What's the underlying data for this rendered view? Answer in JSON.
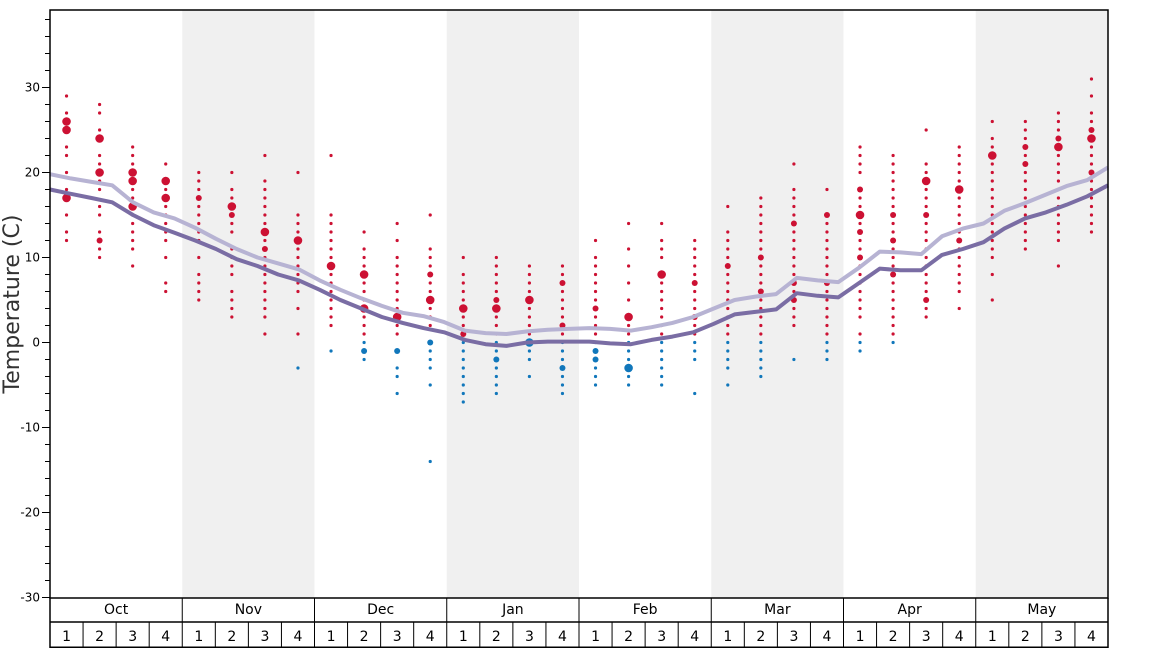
{
  "chart_data": {
    "type": "scatter",
    "title": "",
    "xlabel": "",
    "ylabel": "Temperature (C)",
    "ylim": [
      -30,
      38
    ],
    "yticks": [
      30,
      20,
      10,
      0,
      -10,
      -20,
      -30
    ],
    "yticks_minor_step": 2,
    "grid": false,
    "months": [
      "Oct",
      "Nov",
      "Dec",
      "Jan",
      "Feb",
      "Mar",
      "Apr",
      "May"
    ],
    "weeks": [
      "1",
      "2",
      "3",
      "4"
    ],
    "shaded_months": [
      "Nov",
      "Jan",
      "Mar",
      "May"
    ],
    "colors": {
      "warm_points": "#cc1133",
      "cold_points": "#1177bb",
      "upper_line": "#b7b3d3",
      "lower_line": "#7a6da4",
      "shade": "#f0f0f0"
    },
    "series": [
      {
        "role": "upper-line",
        "values": [
          19.8,
          19.3,
          18.9,
          18.5,
          16.5,
          15.3,
          14.6,
          13.5,
          12.2,
          11.0,
          10.0,
          9.3,
          8.6,
          7.3,
          6.2,
          5.2,
          4.3,
          3.5,
          3.1,
          2.4,
          1.4,
          1.1,
          1.0,
          1.3,
          1.5,
          1.6,
          1.7,
          1.6,
          1.4,
          1.8,
          2.3,
          3.0,
          4.0,
          5.0,
          5.4,
          5.7,
          7.6,
          7.3,
          7.1,
          8.8,
          10.7,
          10.6,
          10.4,
          12.5,
          13.4,
          14.0,
          15.5,
          16.4,
          17.4,
          18.4,
          19.1,
          20.6
        ]
      },
      {
        "role": "lower-line",
        "values": [
          18.0,
          17.5,
          17.0,
          16.5,
          15.0,
          13.8,
          12.9,
          12.0,
          11.0,
          9.8,
          9.0,
          8.0,
          7.3,
          6.2,
          5.0,
          4.0,
          3.0,
          2.3,
          1.7,
          1.2,
          0.3,
          -0.2,
          -0.4,
          0.0,
          0.1,
          0.1,
          0.1,
          -0.1,
          -0.2,
          0.3,
          0.7,
          1.2,
          2.2,
          3.3,
          3.6,
          3.9,
          5.8,
          5.5,
          5.3,
          7.0,
          8.7,
          8.5,
          8.5,
          10.3,
          11.0,
          11.8,
          13.4,
          14.6,
          15.3,
          16.2,
          17.2,
          18.5
        ]
      }
    ],
    "points": [
      {
        "m": "Oct",
        "w": 1,
        "ys": [
          29,
          27,
          26,
          25,
          23,
          22,
          20,
          18,
          17,
          15,
          13,
          12
        ],
        "big": [
          26,
          25,
          17
        ],
        "mid": []
      },
      {
        "m": "Oct",
        "w": 2,
        "ys": [
          28,
          27,
          25,
          24,
          22,
          21,
          20,
          19,
          18,
          16,
          15,
          13,
          12,
          11,
          10
        ],
        "big": [
          24,
          20
        ],
        "mid": [
          12
        ]
      },
      {
        "m": "Oct",
        "w": 3,
        "ys": [
          23,
          22,
          21,
          20,
          19,
          18,
          17,
          16,
          15,
          14,
          13,
          12,
          11,
          9
        ],
        "big": [
          20,
          19,
          16
        ],
        "mid": []
      },
      {
        "m": "Oct",
        "w": 4,
        "ys": [
          21,
          19,
          18,
          17,
          16,
          15,
          14,
          13,
          12,
          10,
          7,
          6
        ],
        "big": [
          19,
          17
        ],
        "mid": []
      },
      {
        "m": "Nov",
        "w": 1,
        "ys": [
          20,
          19,
          18,
          17,
          16,
          15,
          14,
          13,
          12,
          10,
          8,
          7,
          6,
          5
        ],
        "big": [],
        "mid": [
          17
        ]
      },
      {
        "m": "Nov",
        "w": 2,
        "ys": [
          20,
          18,
          17,
          16,
          15,
          14,
          13,
          11,
          10,
          9,
          8,
          6,
          5,
          4,
          3
        ],
        "big": [
          16
        ],
        "mid": [
          15
        ]
      },
      {
        "m": "Nov",
        "w": 3,
        "ys": [
          22,
          19,
          18,
          17,
          16,
          15,
          14,
          13,
          12,
          11,
          10,
          9,
          8,
          7,
          6,
          5,
          4,
          3,
          1
        ],
        "big": [
          13
        ],
        "mid": [
          11
        ]
      },
      {
        "m": "Nov",
        "w": 4,
        "ys": [
          20,
          15,
          14,
          13,
          12,
          11,
          10,
          9,
          8,
          7,
          6,
          4,
          1,
          -3
        ],
        "big": [
          12
        ],
        "mid": []
      },
      {
        "m": "Dec",
        "w": 1,
        "ys": [
          22,
          15,
          14,
          13,
          12,
          11,
          10,
          9,
          8,
          7,
          6,
          5,
          4,
          3,
          2,
          -1
        ],
        "big": [
          9
        ],
        "mid": []
      },
      {
        "m": "Dec",
        "w": 2,
        "ys": [
          13,
          11,
          10,
          9,
          8,
          7,
          6,
          5,
          4,
          3,
          2,
          1,
          0,
          -1,
          -2
        ],
        "big": [
          8,
          4
        ],
        "mid": [
          -1
        ]
      },
      {
        "m": "Dec",
        "w": 3,
        "ys": [
          14,
          12,
          10,
          9,
          8,
          7,
          6,
          5,
          4,
          3,
          2,
          1,
          -1,
          -3,
          -4,
          -6
        ],
        "big": [
          3
        ],
        "mid": [
          -1
        ]
      },
      {
        "m": "Dec",
        "w": 4,
        "ys": [
          15,
          11,
          10,
          9,
          8,
          7,
          6,
          5,
          4,
          3,
          2,
          0,
          -1,
          -2,
          -3,
          -5,
          -14
        ],
        "big": [
          5
        ],
        "mid": [
          8,
          0
        ]
      },
      {
        "m": "Jan",
        "w": 1,
        "ys": [
          10,
          8,
          7,
          6,
          5,
          4,
          3,
          2,
          1,
          0,
          -1,
          -2,
          -3,
          -4,
          -5,
          -6,
          -7
        ],
        "big": [
          4
        ],
        "mid": [
          1
        ]
      },
      {
        "m": "Jan",
        "w": 2,
        "ys": [
          10,
          9,
          8,
          7,
          6,
          5,
          4,
          3,
          2,
          1,
          0,
          -1,
          -2,
          -3,
          -4,
          -5,
          -6
        ],
        "big": [
          4
        ],
        "mid": [
          5,
          -2
        ]
      },
      {
        "m": "Jan",
        "w": 3,
        "ys": [
          9,
          8,
          7,
          6,
          5,
          4,
          3,
          2,
          1,
          0,
          -1,
          -2,
          -4
        ],
        "big": [
          5,
          0
        ],
        "mid": []
      },
      {
        "m": "Jan",
        "w": 4,
        "ys": [
          9,
          8,
          7,
          6,
          5,
          4,
          3,
          2,
          1,
          0,
          -1,
          -2,
          -3,
          -4,
          -5,
          -6
        ],
        "big": [],
        "mid": [
          7,
          2,
          -3
        ]
      },
      {
        "m": "Feb",
        "w": 1,
        "ys": [
          12,
          10,
          9,
          8,
          7,
          6,
          5,
          4,
          3,
          2,
          1,
          0,
          -1,
          -2,
          -3,
          -4,
          -5
        ],
        "big": [],
        "mid": [
          4,
          -1,
          -2
        ]
      },
      {
        "m": "Feb",
        "w": 2,
        "ys": [
          14,
          11,
          9,
          7,
          5,
          3,
          2,
          1,
          0,
          -1,
          -2,
          -3,
          -4,
          -5
        ],
        "big": [
          3,
          -3
        ],
        "mid": []
      },
      {
        "m": "Feb",
        "w": 3,
        "ys": [
          14,
          12,
          11,
          10,
          8,
          7,
          6,
          5,
          4,
          3,
          2,
          1,
          0,
          -1,
          -2,
          -3,
          -4,
          -5
        ],
        "big": [
          8
        ],
        "mid": []
      },
      {
        "m": "Feb",
        "w": 4,
        "ys": [
          12,
          11,
          10,
          9,
          8,
          7,
          6,
          5,
          4,
          3,
          2,
          1,
          0,
          -1,
          -2,
          -6
        ],
        "big": [],
        "mid": [
          7,
          3
        ]
      },
      {
        "m": "Mar",
        "w": 1,
        "ys": [
          16,
          13,
          12,
          11,
          10,
          9,
          8,
          7,
          6,
          5,
          4,
          3,
          2,
          1,
          0,
          -1,
          -2,
          -3,
          -5
        ],
        "big": [],
        "mid": [
          9
        ]
      },
      {
        "m": "Mar",
        "w": 2,
        "ys": [
          17,
          16,
          15,
          14,
          13,
          12,
          11,
          10,
          9,
          8,
          7,
          6,
          5,
          4,
          3,
          2,
          1,
          0,
          -1,
          -2,
          -3,
          -4
        ],
        "big": [],
        "mid": [
          10,
          6
        ]
      },
      {
        "m": "Mar",
        "w": 3,
        "ys": [
          21,
          18,
          17,
          16,
          15,
          14,
          13,
          12,
          11,
          10,
          9,
          8,
          7,
          6,
          5,
          4,
          3,
          2,
          -2
        ],
        "big": [],
        "mid": [
          14,
          7,
          5
        ]
      },
      {
        "m": "Mar",
        "w": 4,
        "ys": [
          18,
          15,
          14,
          13,
          12,
          11,
          10,
          9,
          8,
          7,
          6,
          5,
          4,
          3,
          2,
          1,
          0,
          -1,
          -2
        ],
        "big": [],
        "mid": [
          15,
          7
        ]
      },
      {
        "m": "Apr",
        "w": 1,
        "ys": [
          23,
          22,
          21,
          20,
          18,
          17,
          16,
          15,
          14,
          13,
          12,
          11,
          10,
          9,
          8,
          7,
          6,
          5,
          4,
          3,
          1,
          0,
          -1
        ],
        "big": [
          15
        ],
        "mid": [
          18,
          13,
          10
        ]
      },
      {
        "m": "Apr",
        "w": 2,
        "ys": [
          22,
          21,
          20,
          19,
          18,
          17,
          16,
          15,
          14,
          13,
          12,
          11,
          10,
          9,
          8,
          7,
          6,
          5,
          4,
          3,
          2,
          1,
          0
        ],
        "big": [],
        "mid": [
          15,
          12,
          8
        ]
      },
      {
        "m": "Apr",
        "w": 3,
        "ys": [
          25,
          21,
          20,
          19,
          18,
          17,
          16,
          15,
          14,
          13,
          12,
          11,
          10,
          9,
          8,
          7,
          6,
          5,
          4,
          3
        ],
        "big": [
          19
        ],
        "mid": [
          15,
          5
        ]
      },
      {
        "m": "Apr",
        "w": 4,
        "ys": [
          23,
          22,
          21,
          20,
          19,
          18,
          17,
          16,
          15,
          14,
          13,
          12,
          11,
          10,
          9,
          8,
          7,
          6,
          4
        ],
        "big": [
          18
        ],
        "mid": [
          12
        ]
      },
      {
        "m": "May",
        "w": 1,
        "ys": [
          26,
          24,
          23,
          22,
          21,
          20,
          19,
          18,
          17,
          16,
          15,
          14,
          13,
          12,
          11,
          10,
          8,
          5
        ],
        "big": [
          22
        ],
        "mid": []
      },
      {
        "m": "May",
        "w": 2,
        "ys": [
          26,
          25,
          24,
          23,
          22,
          21,
          20,
          19,
          18,
          17,
          16,
          15,
          14,
          13,
          12,
          11
        ],
        "big": [],
        "mid": [
          23,
          21
        ]
      },
      {
        "m": "May",
        "w": 3,
        "ys": [
          27,
          26,
          25,
          24,
          23,
          22,
          21,
          20,
          19,
          18,
          17,
          16,
          15,
          14,
          13,
          12,
          9
        ],
        "big": [
          23
        ],
        "mid": [
          24
        ]
      },
      {
        "m": "May",
        "w": 4,
        "ys": [
          31,
          29,
          27,
          26,
          25,
          24,
          23,
          22,
          21,
          20,
          19,
          18,
          17,
          16,
          15,
          14,
          13
        ],
        "big": [
          24
        ],
        "mid": [
          25,
          20
        ]
      }
    ]
  }
}
